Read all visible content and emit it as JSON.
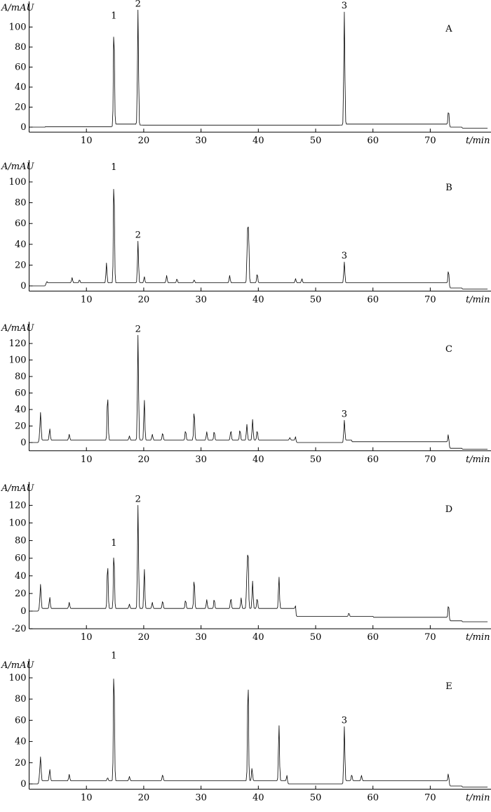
{
  "chart_data": [
    {
      "type": "line",
      "panel": "A",
      "ylabel": "A/mAU",
      "xlabel": "t/min",
      "xlim": [
        0,
        80
      ],
      "ylim": [
        -5,
        120
      ],
      "yticks": [
        0,
        20,
        40,
        60,
        80,
        100
      ],
      "xticks": [
        10,
        20,
        30,
        40,
        50,
        60,
        70
      ],
      "peaks": [
        {
          "label": "1",
          "x": 14.8,
          "y": 105
        },
        {
          "label": "2",
          "x": 19.0,
          "y": 117
        },
        {
          "label": "3",
          "x": 55.0,
          "y": 115
        }
      ],
      "series": [
        {
          "x": [
            0,
            2.8,
            14.8,
            19.0,
            45,
            55.0,
            60,
            64.2,
            73.2,
            75.5,
            80
          ],
          "y": [
            0,
            0.5,
            105,
            117,
            2,
            115,
            5,
            5,
            19,
            0,
            -1
          ]
        }
      ]
    },
    {
      "type": "line",
      "panel": "B",
      "ylabel": "A/mAU",
      "xlabel": "t/min",
      "xlim": [
        0,
        80
      ],
      "ylim": [
        -5,
        115
      ],
      "yticks": [
        0,
        20,
        40,
        60,
        80,
        100
      ],
      "xticks": [
        10,
        20,
        30,
        40,
        50,
        60,
        70
      ],
      "peaks": [
        {
          "label": "1",
          "x": 14.8,
          "y": 108
        },
        {
          "label": "2",
          "x": 19.0,
          "y": 43
        },
        {
          "label": "3",
          "x": 55.0,
          "y": 23
        }
      ],
      "series": [
        {
          "x": [
            0,
            3,
            3.6,
            7.5,
            8.8,
            13.5,
            14.8,
            19.0,
            20.1,
            24,
            25.8,
            28.8,
            35.0,
            38.1,
            38.3,
            39.8,
            46.5,
            47.6,
            51.3,
            55.0,
            60.2,
            64.2,
            73.2,
            75.5,
            80
          ],
          "y": [
            0,
            3,
            5,
            8,
            6,
            22,
            108,
            43,
            9,
            10,
            7,
            6,
            10,
            50,
            52,
            12,
            7,
            7,
            5,
            23,
            3,
            3,
            18,
            -2,
            -3
          ]
        }
      ]
    },
    {
      "type": "line",
      "panel": "C",
      "ylabel": "A/mAU",
      "xlabel": "t/min",
      "xlim": [
        0,
        80
      ],
      "ylim": [
        -10,
        135
      ],
      "yticks": [
        0,
        20,
        40,
        60,
        80,
        100,
        120
      ],
      "xticks": [
        10,
        20,
        30,
        40,
        50,
        60,
        70
      ],
      "peaks": [
        {
          "label": "2",
          "x": 19.0,
          "y": 130
        },
        {
          "label": "3",
          "x": 55.0,
          "y": 27
        }
      ],
      "series": [
        {
          "x": [
            0,
            1.8,
            2.0,
            3.6,
            7.0,
            13.7,
            17.5,
            19.0,
            20.1,
            21.5,
            23.3,
            27.3,
            28.8,
            31.0,
            32.3,
            35.2,
            36.8,
            38.0,
            39.0,
            39.8,
            45.5,
            46.5,
            49.5,
            55.0,
            56.3,
            60.0,
            64.2,
            73.2,
            75.5,
            80
          ],
          "y": [
            0,
            5,
            36,
            17,
            10,
            60,
            8,
            130,
            53,
            10,
            12,
            15,
            40,
            13,
            14,
            15,
            16,
            22,
            28,
            15,
            6,
            7,
            0,
            27,
            3,
            1,
            1,
            13,
            -7,
            -8
          ]
        }
      ]
    },
    {
      "type": "line",
      "panel": "D",
      "ylabel": "A/mAU",
      "xlabel": "t/min",
      "xlim": [
        0,
        80
      ],
      "ylim": [
        -20,
        125
      ],
      "yticks": [
        -20,
        0,
        20,
        40,
        60,
        80,
        100,
        120
      ],
      "xticks": [
        10,
        20,
        30,
        40,
        50,
        60,
        70
      ],
      "peaks": [
        {
          "label": "1",
          "x": 14.8,
          "y": 70
        },
        {
          "label": "2",
          "x": 19.0,
          "y": 120
        }
      ],
      "series": [
        {
          "x": [
            0,
            1.8,
            2.0,
            3.6,
            7.0,
            13.7,
            14.8,
            17.5,
            19.0,
            20.1,
            21.5,
            23.3,
            27.3,
            28.8,
            31.0,
            32.3,
            35.2,
            37.0,
            38.0,
            38.2,
            39.0,
            39.8,
            43.6,
            46.5,
            49.5,
            55.8,
            60.0,
            64.2,
            73.2,
            75.5,
            80
          ],
          "y": [
            0,
            4,
            30,
            16,
            10,
            56,
            70,
            8,
            120,
            49,
            10,
            12,
            13,
            38,
            13,
            14,
            15,
            15,
            38,
            70,
            34,
            15,
            40,
            6,
            -6,
            -2,
            -6,
            -7,
            10,
            -11,
            -12
          ]
        }
      ]
    },
    {
      "type": "line",
      "panel": "E",
      "ylabel": "A/mAU",
      "xlabel": "t/min",
      "xlim": [
        0,
        80
      ],
      "ylim": [
        -5,
        125
      ],
      "yticks": [
        0,
        20,
        40,
        60,
        80,
        100
      ],
      "xticks": [
        10,
        20,
        30,
        40,
        50,
        60,
        70
      ],
      "peaks": [
        {
          "label": "1",
          "x": 14.8,
          "y": 115
        },
        {
          "label": "3",
          "x": 55.0,
          "y": 54
        }
      ],
      "series": [
        {
          "x": [
            0,
            1.8,
            2.0,
            3.6,
            7.0,
            13.7,
            14.8,
            17.5,
            23.3,
            32.2,
            38.2,
            38.9,
            43.6,
            45.0,
            46.5,
            55.0,
            56.3,
            58.0,
            64.2,
            73.2,
            75.5,
            80
          ],
          "y": [
            0,
            6,
            25,
            14,
            9,
            6,
            115,
            7,
            9,
            4,
            103,
            15,
            57,
            8,
            0,
            54,
            9,
            8,
            4,
            12,
            -2,
            -3
          ]
        }
      ]
    }
  ]
}
